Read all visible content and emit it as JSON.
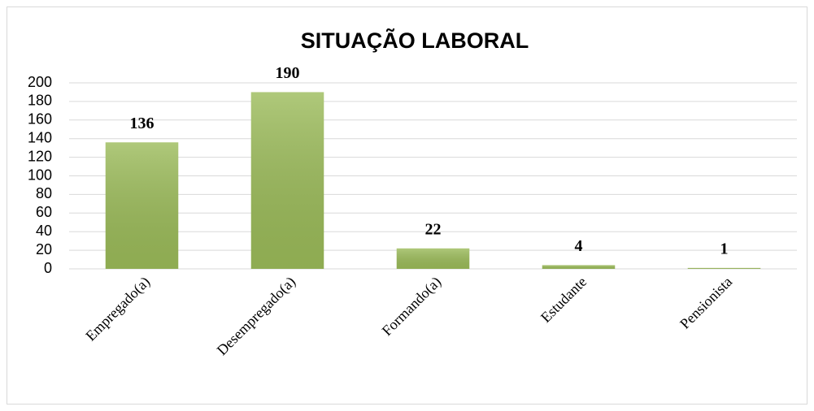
{
  "chart_data": {
    "type": "bar",
    "title": "SITUAÇÃO LABORAL",
    "categories": [
      "Empregado(a)",
      "Desempregado(a)",
      "Formando(a)",
      "Estudante",
      "Pensionista"
    ],
    "values": [
      136,
      190,
      22,
      4,
      1
    ],
    "color": "#9bbb59",
    "ylim": [
      0,
      200
    ],
    "yticks": [
      0,
      20,
      40,
      60,
      80,
      100,
      120,
      140,
      160,
      180,
      200
    ],
    "grid": true
  }
}
